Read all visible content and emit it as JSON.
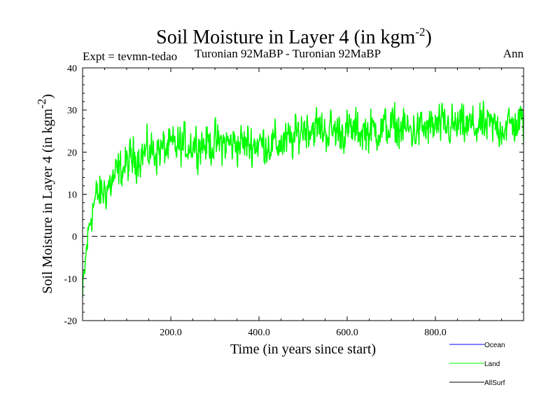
{
  "chart_data": {
    "type": "line",
    "title": "Soil Moisture in Layer 4 (in kgm",
    "title_superscript": "-2",
    "title_close": ")",
    "subtitle_left": "Expt = tevmn-tedao",
    "subtitle_center": "Turonian  92MaBP - Turonian  92MaBP",
    "subtitle_right": "Ann",
    "xlabel": "Time (in years since start)",
    "ylabel": "Soil Moisture in Layer 4 (in kgm",
    "ylabel_superscript": "-2",
    "ylabel_close": ")",
    "xlim": [
      0,
      1000
    ],
    "ylim": [
      -20,
      40
    ],
    "x_ticks": [
      200,
      400,
      600,
      800
    ],
    "x_tick_labels": [
      "200.0",
      "400.0",
      "600.0",
      "800.0"
    ],
    "y_ticks": [
      -20,
      -10,
      0,
      10,
      20,
      30,
      40
    ],
    "y_tick_labels": [
      "-20",
      "-10",
      "0",
      "10",
      "20",
      "30",
      "40"
    ],
    "zero_line": 0,
    "legend": [
      {
        "name": "Ocean",
        "color": "#0000ff"
      },
      {
        "name": "Land",
        "color": "#00ff00"
      },
      {
        "name": "AllSurf",
        "color": "#000000"
      }
    ],
    "series": [
      {
        "name": "Land",
        "color": "#00ff00",
        "trend_x": [
          0,
          5,
          10,
          15,
          20,
          30,
          40,
          50,
          60,
          80,
          100,
          120,
          150,
          200,
          250,
          300,
          350,
          400,
          450,
          480,
          500,
          520,
          550,
          600,
          650,
          700,
          750,
          800,
          850,
          900,
          950,
          1000
        ],
        "trend_y": [
          -15,
          -8,
          -2,
          2,
          6,
          9,
          10,
          11,
          12,
          15,
          17,
          19,
          20,
          21,
          22,
          22,
          22,
          22,
          22,
          23,
          26,
          26,
          25,
          25,
          25,
          26,
          25,
          26,
          26,
          26,
          26,
          27
        ],
        "noise_amplitude": 3.5,
        "n_points": 1000
      }
    ]
  }
}
